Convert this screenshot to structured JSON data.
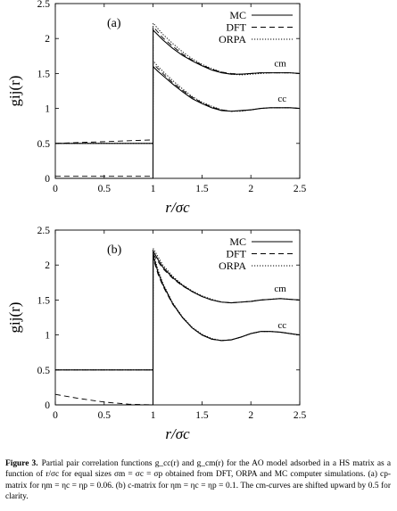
{
  "figure": {
    "caption_label": "Figure 3.",
    "caption_text": "Partial pair correlation functions g_cc(r) and g_cm(r) for the AO model adsorbed in a HS matrix as a function of r/σc for equal sizes σm = σc = σp obtained from DFT, ORPA and MC computer simulations. (a) cp-matrix for ηm = ηc = ηp = 0.06. (b) c-matrix for ηm = ηc = ηp = 0.1. The cm-curves are shifted upward by 0.5 for clarity."
  },
  "styles": {
    "MC": {
      "color": "#000000",
      "dash": "none",
      "width": 1.1
    },
    "DFT": {
      "color": "#000000",
      "dash": "6,4",
      "width": 0.9
    },
    "ORPA": {
      "color": "#000000",
      "dash": "1.2,1.8",
      "width": 1.0
    }
  },
  "chart_data": [
    {
      "panel_label": "(a)",
      "type": "line",
      "xlabel": "r/σc",
      "ylabel": "gij(r)",
      "xlim": [
        0,
        2.5
      ],
      "ylim": [
        0,
        2.5
      ],
      "xticks": [
        "0",
        "0.5",
        "1",
        "1.5",
        "2",
        "2.5"
      ],
      "yticks": [
        "0",
        "0.5",
        "1",
        "1.5",
        "2",
        "2.5"
      ],
      "legend_position": "top-right",
      "annotations": [
        {
          "text": "cm",
          "x": 2.3,
          "y": 1.6
        },
        {
          "text": "cc",
          "x": 2.32,
          "y": 1.1
        }
      ],
      "series": [
        {
          "name": "MC",
          "group": "cm",
          "x": [
            0,
            0.999,
            1.0,
            1.05,
            1.1,
            1.2,
            1.3,
            1.4,
            1.5,
            1.6,
            1.7,
            1.8,
            1.9,
            2.0,
            2.1,
            2.2,
            2.3,
            2.4,
            2.5
          ],
          "y": [
            0.5,
            0.5,
            2.12,
            2.05,
            1.98,
            1.86,
            1.76,
            1.68,
            1.61,
            1.55,
            1.51,
            1.49,
            1.49,
            1.5,
            1.51,
            1.51,
            1.51,
            1.51,
            1.5
          ]
        },
        {
          "name": "DFT",
          "group": "cm",
          "x": [
            0,
            0.999,
            1.0,
            1.05,
            1.1,
            1.2,
            1.3,
            1.4,
            1.5,
            1.6,
            1.7,
            1.8,
            1.9,
            2.0,
            2.1,
            2.2,
            2.3,
            2.4,
            2.5
          ],
          "y": [
            0.5,
            0.55,
            2.17,
            2.09,
            2.01,
            1.89,
            1.78,
            1.69,
            1.62,
            1.56,
            1.52,
            1.5,
            1.49,
            1.5,
            1.51,
            1.51,
            1.51,
            1.51,
            1.5
          ]
        },
        {
          "name": "ORPA",
          "group": "cm",
          "x": [
            0,
            0.999,
            1.0,
            1.05,
            1.1,
            1.2,
            1.3,
            1.4,
            1.5,
            1.6,
            1.7,
            1.8,
            1.9,
            2.0,
            2.1,
            2.2,
            2.3,
            2.4,
            2.5
          ],
          "y": [
            0.5,
            0.5,
            2.22,
            2.14,
            2.06,
            1.93,
            1.81,
            1.71,
            1.63,
            1.57,
            1.52,
            1.49,
            1.48,
            1.49,
            1.5,
            1.51,
            1.51,
            1.51,
            1.5
          ]
        },
        {
          "name": "MC",
          "group": "cc",
          "x": [
            0,
            0.999,
            1.0,
            1.05,
            1.1,
            1.2,
            1.3,
            1.4,
            1.5,
            1.6,
            1.7,
            1.8,
            1.9,
            2.0,
            2.1,
            2.2,
            2.3,
            2.4,
            2.5
          ],
          "y": [
            0.0,
            0.0,
            1.6,
            1.53,
            1.47,
            1.35,
            1.24,
            1.14,
            1.07,
            1.01,
            0.97,
            0.96,
            0.97,
            0.98,
            1.0,
            1.01,
            1.01,
            1.01,
            1.0
          ]
        },
        {
          "name": "DFT",
          "group": "cc",
          "x": [
            0,
            0.999,
            1.0,
            1.05,
            1.1,
            1.2,
            1.3,
            1.4,
            1.5,
            1.6,
            1.7,
            1.8,
            1.9,
            2.0,
            2.1,
            2.2,
            2.3,
            2.4,
            2.5
          ],
          "y": [
            0.03,
            0.03,
            1.64,
            1.57,
            1.5,
            1.37,
            1.26,
            1.16,
            1.08,
            1.02,
            0.98,
            0.96,
            0.97,
            0.98,
            1.0,
            1.01,
            1.01,
            1.01,
            1.0
          ]
        },
        {
          "name": "ORPA",
          "group": "cc",
          "x": [
            0,
            0.999,
            1.0,
            1.05,
            1.1,
            1.2,
            1.3,
            1.4,
            1.5,
            1.6,
            1.7,
            1.8,
            1.9,
            2.0,
            2.1,
            2.2,
            2.3,
            2.4,
            2.5
          ],
          "y": [
            0.0,
            0.0,
            1.68,
            1.6,
            1.53,
            1.4,
            1.28,
            1.17,
            1.09,
            1.03,
            0.98,
            0.96,
            0.96,
            0.98,
            1.0,
            1.01,
            1.01,
            1.01,
            1.0
          ]
        }
      ]
    },
    {
      "panel_label": "(b)",
      "type": "line",
      "xlabel": "r/σc",
      "ylabel": "gij(r)",
      "xlim": [
        0,
        2.5
      ],
      "ylim": [
        0,
        2.5
      ],
      "xticks": [
        "0",
        "0.5",
        "1",
        "1.5",
        "2",
        "2.5"
      ],
      "yticks": [
        "0",
        "0.5",
        "1",
        "1.5",
        "2",
        "2.5"
      ],
      "legend_position": "top-right",
      "annotations": [
        {
          "text": "cm",
          "x": 2.3,
          "y": 1.62
        },
        {
          "text": "cc",
          "x": 2.32,
          "y": 1.1
        }
      ],
      "series": [
        {
          "name": "MC",
          "group": "cm",
          "x": [
            0,
            0.999,
            1.0,
            1.05,
            1.1,
            1.2,
            1.3,
            1.4,
            1.5,
            1.6,
            1.7,
            1.8,
            1.9,
            2.0,
            2.1,
            2.2,
            2.3,
            2.4,
            2.5
          ],
          "y": [
            0.5,
            0.5,
            2.2,
            2.08,
            1.97,
            1.82,
            1.71,
            1.62,
            1.55,
            1.5,
            1.47,
            1.46,
            1.47,
            1.48,
            1.5,
            1.51,
            1.52,
            1.51,
            1.5
          ]
        },
        {
          "name": "DFT",
          "group": "cm",
          "x": [
            0,
            0.999,
            1.0,
            1.05,
            1.1,
            1.2,
            1.3,
            1.4,
            1.5,
            1.6,
            1.7,
            1.8,
            1.9,
            2.0,
            2.1,
            2.2,
            2.3,
            2.4,
            2.5
          ],
          "y": [
            0.5,
            0.5,
            2.16,
            2.05,
            1.95,
            1.81,
            1.7,
            1.62,
            1.55,
            1.5,
            1.47,
            1.46,
            1.47,
            1.48,
            1.5,
            1.51,
            1.52,
            1.51,
            1.5
          ]
        },
        {
          "name": "ORPA",
          "group": "cm",
          "x": [
            0,
            0.999,
            1.0,
            1.05,
            1.1,
            1.2,
            1.3,
            1.4,
            1.5,
            1.6,
            1.7,
            1.8,
            1.9,
            2.0,
            2.1,
            2.2,
            2.3,
            2.4,
            2.5
          ],
          "y": [
            0.5,
            0.5,
            2.24,
            2.12,
            2.0,
            1.84,
            1.72,
            1.63,
            1.56,
            1.51,
            1.47,
            1.46,
            1.47,
            1.48,
            1.5,
            1.51,
            1.52,
            1.51,
            1.5
          ]
        },
        {
          "name": "MC",
          "group": "cc",
          "x": [
            0,
            0.999,
            1.0,
            1.05,
            1.1,
            1.2,
            1.3,
            1.4,
            1.5,
            1.6,
            1.7,
            1.8,
            1.9,
            2.0,
            2.1,
            2.2,
            2.3,
            2.4,
            2.5
          ],
          "y": [
            0.0,
            0.0,
            2.14,
            1.9,
            1.72,
            1.45,
            1.25,
            1.1,
            1.0,
            0.94,
            0.92,
            0.93,
            0.97,
            1.02,
            1.05,
            1.05,
            1.04,
            1.02,
            1.0
          ]
        },
        {
          "name": "DFT",
          "group": "cc",
          "x": [
            0,
            0.25,
            0.5,
            0.75,
            0.999,
            1.0,
            1.05,
            1.1,
            1.2,
            1.3,
            1.4,
            1.5,
            1.6,
            1.7,
            1.8,
            1.9,
            2.0,
            2.1,
            2.2,
            2.3,
            2.4,
            2.5
          ],
          "y": [
            0.15,
            0.09,
            0.04,
            0.01,
            0.0,
            2.1,
            1.87,
            1.7,
            1.44,
            1.25,
            1.1,
            1.0,
            0.94,
            0.92,
            0.93,
            0.97,
            1.02,
            1.05,
            1.05,
            1.04,
            1.02,
            1.0
          ]
        },
        {
          "name": "ORPA",
          "group": "cc",
          "x": [
            0,
            0.999,
            1.0,
            1.05,
            1.1,
            1.2,
            1.3,
            1.4,
            1.5,
            1.6,
            1.7,
            1.8,
            1.9,
            2.0,
            2.1,
            2.2,
            2.3,
            2.4,
            2.5
          ],
          "y": [
            0.0,
            0.0,
            2.18,
            1.93,
            1.74,
            1.46,
            1.26,
            1.11,
            1.01,
            0.95,
            0.92,
            0.93,
            0.97,
            1.02,
            1.05,
            1.05,
            1.04,
            1.02,
            1.0
          ]
        }
      ]
    }
  ]
}
